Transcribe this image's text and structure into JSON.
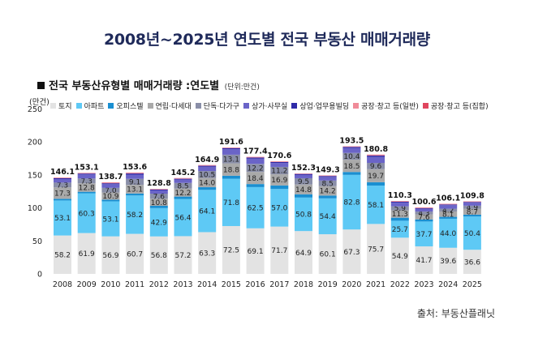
{
  "title": "2008년~2025년 연도별 전국 부동산 매매거래량",
  "subtitle": "전국 부동산유형별 매매거래량 :연도별",
  "unit_note": "(단위:만건)",
  "source": "출처: 부동산플래닛",
  "legend": [
    {
      "name": "토지",
      "color": "#e3e3e3"
    },
    {
      "name": "아파트",
      "color": "#5ec9f5"
    },
    {
      "name": "오피스텔",
      "color": "#1a8fd1"
    },
    {
      "name": "연립·다세대",
      "color": "#a9a9a9"
    },
    {
      "name": "단독·다가구",
      "color": "#8a8fa8"
    },
    {
      "name": "상가·사무실",
      "color": "#6a64c8"
    },
    {
      "name": "상업·업무용빌딩",
      "color": "#2e2aa8"
    },
    {
      "name": "공장·창고 등(일반)",
      "color": "#f08b99"
    },
    {
      "name": "공장·창고 등(집합)",
      "color": "#e0455e"
    }
  ],
  "chart_data": {
    "type": "bar",
    "stacked": true,
    "ylabel": "(만건)",
    "ylim": [
      0,
      250
    ],
    "yticks": [
      0,
      50,
      100,
      150,
      200,
      250
    ],
    "grid": false,
    "categories": [
      "2008",
      "2009",
      "2010",
      "2011",
      "2012",
      "2013",
      "2014",
      "2015",
      "2016",
      "2017",
      "2018",
      "2019",
      "2020",
      "2021",
      "2022",
      "2023",
      "2024",
      "2025"
    ],
    "totals": [
      146.1,
      153.1,
      138.7,
      153.6,
      128.8,
      145.2,
      164.9,
      191.6,
      177.4,
      170.6,
      152.3,
      149.3,
      193.5,
      180.8,
      110.3,
      100.6,
      106.1,
      109.8
    ],
    "series": [
      {
        "name": "토지",
        "color": "#e3e3e3",
        "values": [
          58.2,
          61.9,
          56.9,
          60.7,
          56.8,
          57.2,
          63.3,
          72.5,
          69.1,
          71.7,
          64.9,
          60.1,
          67.3,
          75.7,
          54.9,
          41.7,
          39.6,
          36.6
        ],
        "labels": [
          "58.2",
          "61.9",
          "56.9",
          "60.7",
          "56.8",
          "57.2",
          "63.3",
          "72.5",
          "69.1",
          "71.7",
          "64.9",
          "60.1",
          "67.3",
          "75.7",
          "54.9",
          "41.7",
          "39.6",
          "36.6"
        ]
      },
      {
        "name": "아파트",
        "color": "#5ec9f5",
        "values": [
          53.1,
          60.3,
          53.1,
          58.2,
          42.9,
          56.4,
          64.1,
          71.8,
          62.5,
          57.0,
          50.8,
          54.4,
          82.8,
          58.1,
          25.7,
          37.7,
          44.0,
          50.4
        ],
        "labels": [
          "53.1",
          "60.3",
          "53.1",
          "58.2",
          "42.9",
          "56.4",
          "64.1",
          "71.8",
          "62.5",
          "57.0",
          "50.8",
          "54.4",
          "82.8",
          "58.1",
          "25.7",
          "37.7",
          "44.0",
          "50.4"
        ]
      },
      {
        "name": "오피스텔",
        "color": "#1a8fd1",
        "values": [
          2.5,
          2.3,
          2.5,
          3.0,
          3.5,
          3.6,
          4.0,
          4.5,
          4.6,
          5.4,
          5.0,
          4.3,
          4.4,
          5.2,
          4.6,
          3.2,
          2.9,
          2.8
        ],
        "labels": [
          "",
          "",
          "",
          "",
          "",
          "",
          "",
          "",
          "",
          "",
          "",
          "",
          "",
          "",
          "",
          "",
          "",
          ""
        ]
      },
      {
        "name": "연립·다세대",
        "color": "#a9a9a9",
        "values": [
          17.3,
          12.8,
          10.9,
          13.1,
          10.8,
          12.2,
          14.0,
          18.8,
          18.4,
          16.9,
          14.8,
          14.2,
          18.5,
          19.7,
          11.3,
          7.6,
          8.1,
          8.7
        ],
        "labels": [
          "17.3",
          "12.8",
          "10.9",
          "13.1",
          "10.8",
          "12.2",
          "14.0",
          "18.8",
          "18.4",
          "16.9",
          "14.8",
          "14.2",
          "18.5",
          "19.7",
          "11.3",
          "7.6",
          "8.1",
          "8.7"
        ]
      },
      {
        "name": "단독·다가구",
        "color": "#8a8fa8",
        "values": [
          7.3,
          7.3,
          7.0,
          9.1,
          7.6,
          8.5,
          10.5,
          13.1,
          12.2,
          11.2,
          9.5,
          8.5,
          10.4,
          9.6,
          5.9,
          4.3,
          4.2,
          4.9
        ],
        "labels": [
          "7.3",
          "7.3",
          "7.0",
          "9.1",
          "7.6",
          "8.5",
          "10.5",
          "13.1",
          "12.2",
          "11.2",
          "9.5",
          "8.5",
          "10.4",
          "9.6",
          "5.9",
          "4.3",
          "4.2",
          "4.9"
        ]
      },
      {
        "name": "상가·사무실",
        "color": "#6a64c8",
        "values": [
          5.3,
          6.1,
          5.6,
          6.4,
          5.0,
          5.0,
          6.5,
          8.3,
          7.9,
          5.9,
          5.0,
          5.5,
          7.3,
          9.0,
          5.6,
          4.3,
          5.3,
          4.6
        ],
        "labels": [
          "",
          "",
          "",
          "",
          "",
          "",
          "",
          "",
          "",
          "",
          "",
          "",
          "",
          "",
          "",
          "",
          "",
          ""
        ]
      },
      {
        "name": "상업·업무용빌딩",
        "color": "#2e2aa8",
        "values": [
          1.4,
          1.4,
          1.4,
          1.7,
          1.3,
          1.3,
          1.5,
          1.7,
          1.6,
          1.5,
          1.5,
          1.4,
          1.8,
          2.0,
          1.3,
          0.9,
          1.1,
          1.0
        ],
        "labels": [
          "",
          "",
          "",
          "",
          "",
          "",
          "",
          "",
          "",
          "",
          "",
          "",
          "",
          "",
          "",
          "",
          "",
          ""
        ]
      },
      {
        "name": "공장·창고 등(일반)",
        "color": "#f08b99",
        "values": [
          0.7,
          0.7,
          0.9,
          1.0,
          0.6,
          0.7,
          0.7,
          0.6,
          0.8,
          0.7,
          0.6,
          0.6,
          0.7,
          0.9,
          0.6,
          0.4,
          0.5,
          0.4
        ],
        "labels": [
          "",
          "",
          "",
          "",
          "",
          "",
          "",
          "",
          "",
          "",
          "",
          "",
          "",
          "",
          "",
          "",
          "",
          ""
        ]
      },
      {
        "name": "공장·창고 등(집합)",
        "color": "#e0455e",
        "values": [
          0.3,
          0.3,
          0.4,
          0.4,
          0.3,
          0.3,
          0.3,
          0.3,
          0.3,
          0.3,
          0.2,
          0.3,
          0.3,
          0.6,
          0.4,
          0.5,
          0.4,
          0.4
        ],
        "labels": [
          "",
          "",
          "",
          "",
          "",
          "",
          "",
          "",
          "",
          "",
          "",
          "",
          "",
          "",
          "",
          "",
          "",
          ""
        ]
      }
    ]
  }
}
